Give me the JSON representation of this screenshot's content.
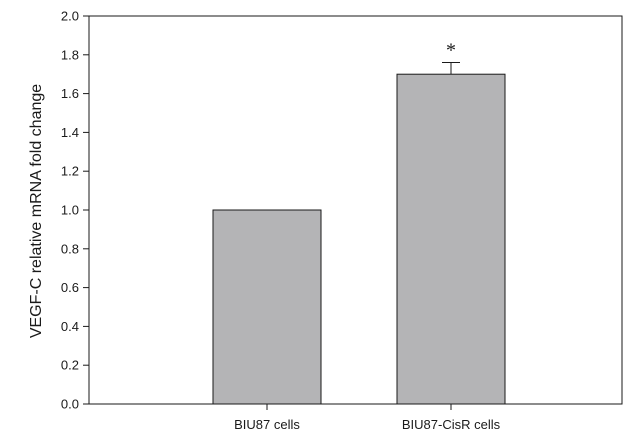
{
  "chart_data": {
    "type": "bar",
    "title": "",
    "xlabel": "",
    "ylabel": "VEGF-C relative mRNA fold change",
    "categories": [
      "BIU87 cells",
      "BIU87-CisR cells"
    ],
    "values": [
      1.0,
      1.7
    ],
    "error_upper": [
      0,
      0.06
    ],
    "annotations": [
      "",
      "*"
    ],
    "ylim": [
      0,
      2.0
    ],
    "yticks": [
      "0.0",
      "0.2",
      "0.4",
      "0.6",
      "0.8",
      "1.0",
      "1.2",
      "1.4",
      "1.6",
      "1.8",
      "2.0"
    ],
    "grid": false,
    "legend": "none",
    "colors": {
      "bar_fill": "#b4b4b6",
      "bar_stroke": "#1a1a1a",
      "axis": "#1a1a1a"
    }
  }
}
